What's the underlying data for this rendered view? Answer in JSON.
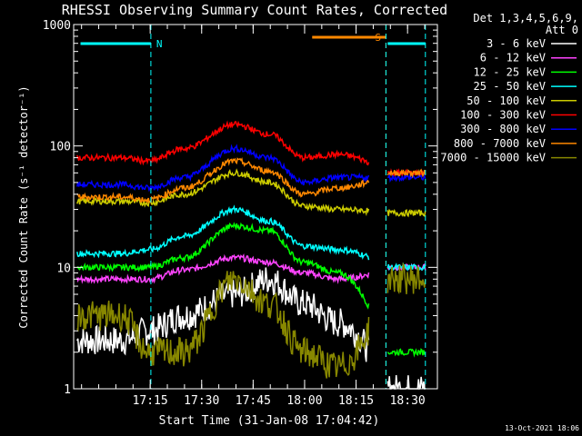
{
  "chart_data": {
    "type": "line",
    "title": "RHESSI Observing Summary Count Rates, Corrected",
    "xlabel": "Start Time (31-Jan-08 17:04:42)",
    "ylabel": "Corrected Count Rate (s⁻¹ detector⁻¹)",
    "yscale": "log",
    "ylim": [
      1,
      1000
    ],
    "xlim_minutes": [
      0,
      71
    ],
    "y_ticks": [
      "1",
      "10",
      "100",
      "1000"
    ],
    "x_ticks": [
      {
        "label": "17:15",
        "t": 10.3
      },
      {
        "label": "17:30",
        "t": 25.3
      },
      {
        "label": "17:45",
        "t": 40.3
      },
      {
        "label": "18:00",
        "t": 55.3
      },
      {
        "label": "18:15",
        "t": 70.3
      },
      {
        "label": "18:30",
        "t": 85.3
      }
    ],
    "legend": {
      "header1": "Det 1,3,4,5,6,9,",
      "header2": "Att 0",
      "placement": "top-right-outside"
    },
    "series": [
      {
        "name": "3 - 6 keV",
        "color": "#ffffff",
        "values": [
          2.5,
          3.0,
          4.0,
          6.0,
          8.0,
          5.0,
          3.5,
          1.0
        ]
      },
      {
        "name": "6 - 12 keV",
        "color": "#ff44ff",
        "values": [
          8.0,
          8.0,
          9.5,
          12.0,
          11.0,
          9.0,
          8.0,
          10.0
        ]
      },
      {
        "name": "12 - 25 keV",
        "color": "#00ff00",
        "values": [
          10.0,
          10.0,
          12.0,
          22.0,
          20.0,
          11.0,
          9.0,
          2.0
        ]
      },
      {
        "name": "25 - 50 keV",
        "color": "#00ffff",
        "values": [
          13.0,
          14.0,
          18.0,
          30.0,
          24.0,
          15.0,
          14.0,
          10.0
        ]
      },
      {
        "name": "50 - 100 keV",
        "color": "#cccc00",
        "values": [
          35.0,
          34.0,
          40.0,
          60.0,
          50.0,
          32.0,
          30.0,
          28.0
        ]
      },
      {
        "name": "100 - 300 keV",
        "color": "#ff0000",
        "values": [
          80.0,
          75.0,
          95.0,
          150.0,
          125.0,
          80.0,
          85.0,
          60.0
        ]
      },
      {
        "name": "300 - 800 keV",
        "color": "#0000ff",
        "values": [
          48.0,
          45.0,
          55.0,
          95.0,
          80.0,
          50.0,
          55.0,
          55.0
        ]
      },
      {
        "name": "800 - 7000 keV",
        "color": "#ff8800",
        "values": [
          38.0,
          36.0,
          45.0,
          75.0,
          62.0,
          40.0,
          45.0,
          60.0
        ]
      },
      {
        "name": "7000 - 15000 keV",
        "color": "#888800",
        "values": [
          4.0,
          2.0,
          2.0,
          8.0,
          5.0,
          2.0,
          1.5,
          8.0
        ]
      }
    ],
    "x_minutes": [
      2,
      10,
      20,
      35,
      45,
      55,
      65,
      85
    ],
    "flags": [
      {
        "label": "N",
        "color": "#00ffff",
        "t_start": -10,
        "t_end": 10.5
      },
      {
        "label": "S",
        "color": "#ff8800",
        "t_start": 57.5,
        "t_end": 79.0
      }
    ]
  },
  "footer": {
    "timestamp": "13-Oct-2021 18:06"
  }
}
